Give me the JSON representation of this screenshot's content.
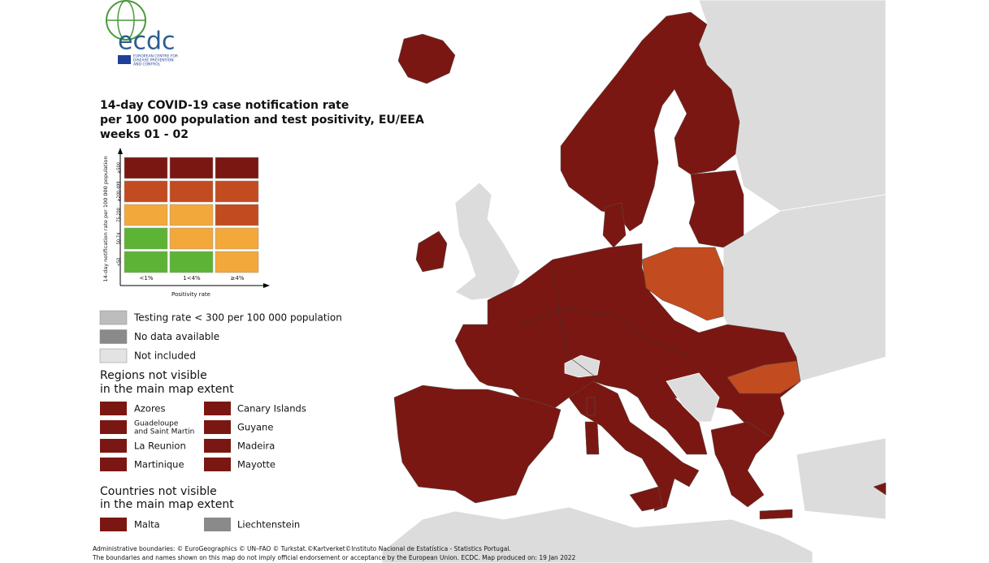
{
  "logo": {
    "name": "ecdc",
    "subtitle_lines": [
      "EUROPEAN CENTRE FOR",
      "DISEASE PREVENTION",
      "AND CONTROL"
    ]
  },
  "title_lines": [
    "14-day COVID-19 case notification rate",
    "per 100 000 population and test positivity, EU/EEA",
    "weeks 01 - 02"
  ],
  "legend_matrix": {
    "y_title": "14-day notification rate per 100 000 population",
    "y_labels": [
      "≥500",
      "≥200-499",
      "75-200",
      "50-74",
      "<50"
    ],
    "x_title": "Positivity rate",
    "x_labels": [
      "<1%",
      "1<4%",
      "≥4%"
    ],
    "colors": [
      [
        "#7b1712",
        "#7b1712",
        "#7b1712"
      ],
      [
        "#c34b20",
        "#c34b20",
        "#c34b20"
      ],
      [
        "#f2a83a",
        "#f2a83a",
        "#c34b20"
      ],
      [
        "#5db335",
        "#f2a83a",
        "#f2a83a"
      ],
      [
        "#5db335",
        "#5db335",
        "#f2a83a"
      ]
    ]
  },
  "legend": {
    "items": [
      "Testing rate < 300 per 100 000 population",
      "No data available",
      "Not included"
    ]
  },
  "regions": {
    "title_lines": [
      "Regions not visible",
      "in the main map extent"
    ],
    "items": [
      [
        "Azores"
      ],
      [
        "Canary Islands"
      ],
      [
        "Guadeloupe",
        "and Saint Martin"
      ],
      [
        "Guyane"
      ],
      [
        "La Reunion"
      ],
      [
        "Madeira"
      ],
      [
        "Martinique"
      ],
      [
        "Mayotte"
      ]
    ]
  },
  "countries": {
    "title_lines": [
      "Countries not visible",
      "in the main map extent"
    ],
    "items": [
      "Malta",
      "Liechtenstein"
    ]
  },
  "footer_lines": [
    "Administrative boundaries: © EuroGeographics © UN–FAO © Turkstat.©Kartverket©Instituto Nacional de Estatística - Statistics Portugal.",
    "The boundaries and names shown on this map do not imply official endorsement or acceptance by the European Union. ECDC. Map produced on: 19 Jan 2022"
  ]
}
